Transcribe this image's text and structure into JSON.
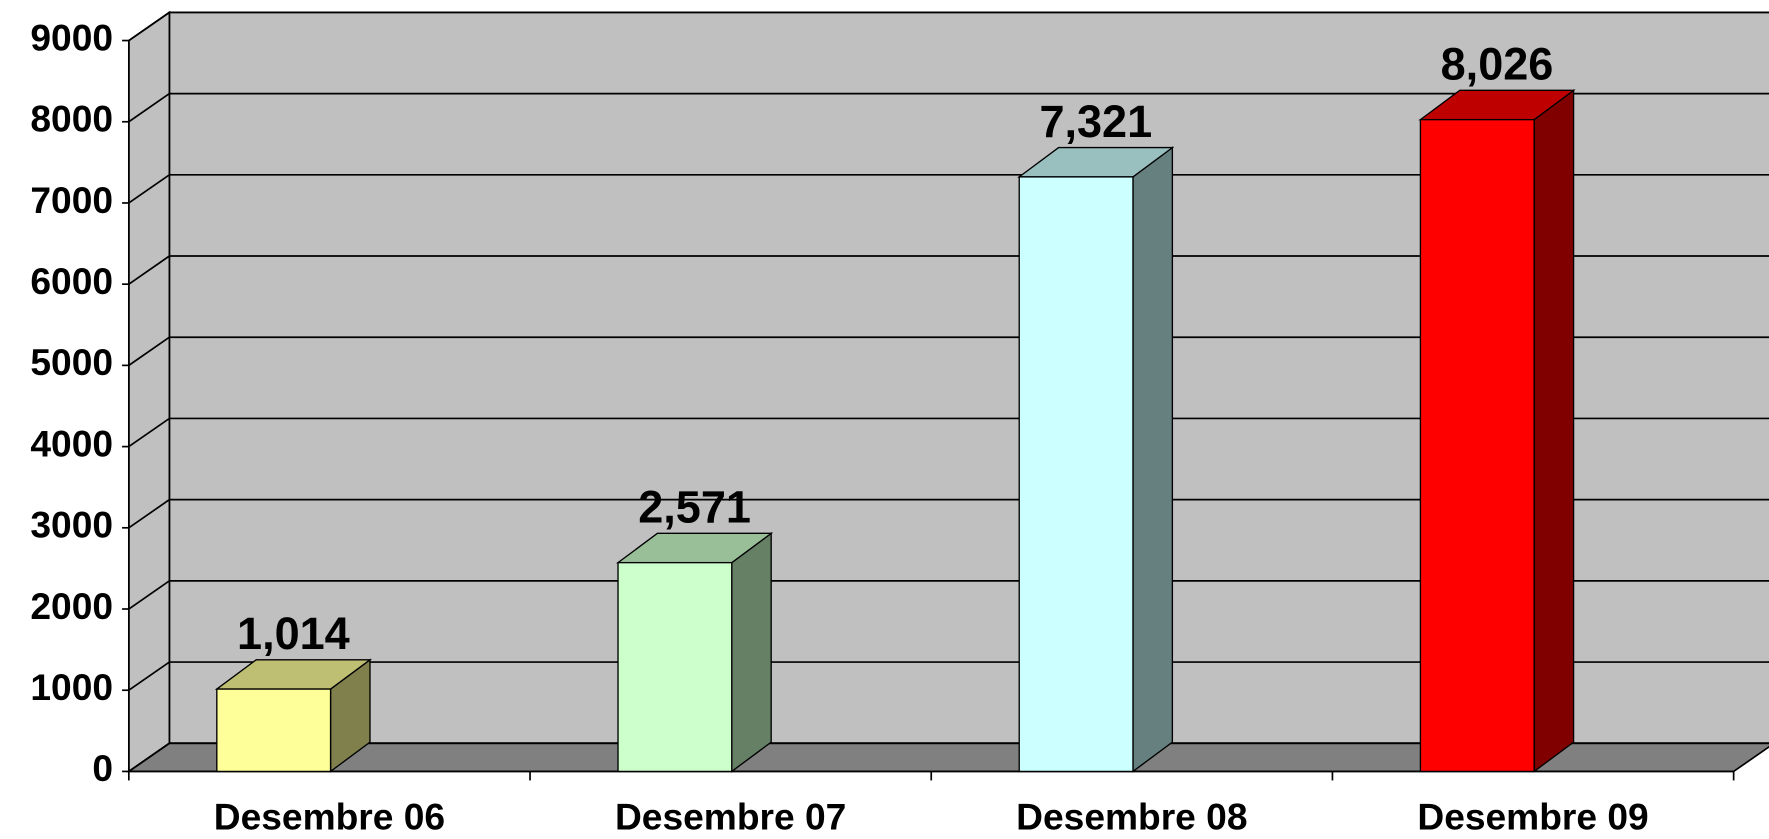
{
  "chart_data": {
    "type": "bar3d",
    "categories": [
      "Desembre 06",
      "Desembre 07",
      "Desembre 08",
      "Desembre 09"
    ],
    "values": [
      1014,
      2571,
      7321,
      8026
    ],
    "value_labels": [
      "1,014",
      "2,571",
      "7,321",
      "8,026"
    ],
    "colors": [
      "#ffff99",
      "#ccffcc",
      "#ccffff",
      "#ff0000"
    ],
    "ylim": [
      0,
      9000
    ],
    "yticks": [
      0,
      1000,
      2000,
      3000,
      4000,
      5000,
      6000,
      7000,
      8000,
      9000
    ],
    "grid": true
  }
}
